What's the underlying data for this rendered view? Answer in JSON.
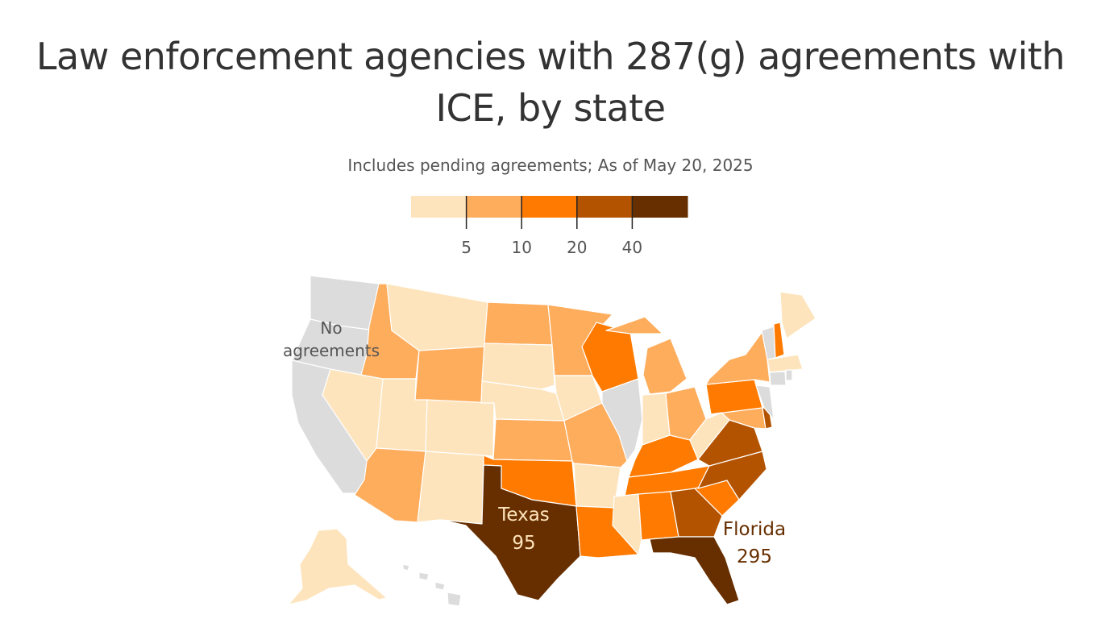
{
  "title": "Law enforcement agencies with 287(g) agreements with ICE, by state",
  "subtitle": "Includes pending agreements; As of May 20, 2025",
  "legend": {
    "colors": [
      "#fee4bc",
      "#fead5d",
      "#ff7a00",
      "#b35300",
      "#672f00"
    ],
    "no_data_color": "#dcdcdc",
    "ticks": [
      "5",
      "10",
      "20",
      "40"
    ]
  },
  "annotations": {
    "no_agreements_line1": "No",
    "no_agreements_line2": "agreements",
    "texas_name": "Texas",
    "texas_value": "95",
    "florida_name": "Florida",
    "florida_value": "295"
  },
  "states": {
    "WA": -1,
    "OR": -1,
    "CA": -1,
    "NV": 0,
    "ID": 1,
    "MT": 0,
    "WY": 1,
    "UT": 0,
    "CO": 0,
    "AZ": 1,
    "NM": 0,
    "ND": 1,
    "SD": 0,
    "NE": 0,
    "KS": 1,
    "OK": 2,
    "TX": 4,
    "MN": 1,
    "IA": 0,
    "MO": 1,
    "AR": 0,
    "LA": 2,
    "WI": 2,
    "IL": -1,
    "MI": 1,
    "IN": 0,
    "OH": 1,
    "KY": 2,
    "TN": 2,
    "MS": 0,
    "AL": 2,
    "GA": 3,
    "FL": 4,
    "SC": 2,
    "NC": 3,
    "VA": 3,
    "WV": 0,
    "MD": 1,
    "DE": 3,
    "PA": 2,
    "NJ": -1,
    "NY": 1,
    "VT": -1,
    "NH": 2,
    "ME": 0,
    "MA": 0,
    "CT": -1,
    "RI": -1,
    "AK": 0,
    "HI": -1
  }
}
